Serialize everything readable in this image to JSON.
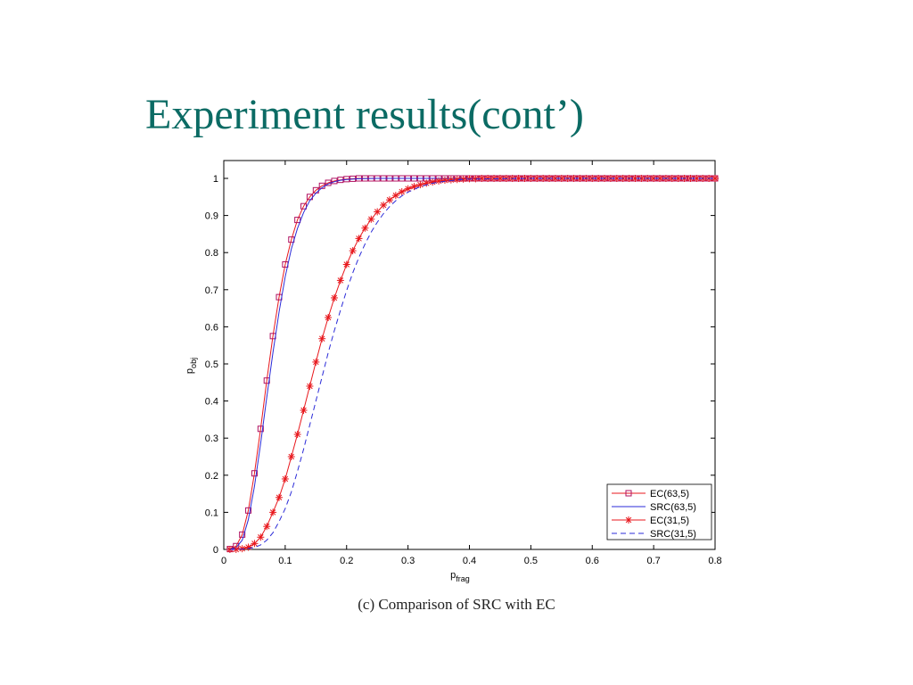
{
  "slide": {
    "title": "Experiment results(cont’)",
    "caption": "(c) Comparison of SRC with EC"
  },
  "colors": {
    "title": "#0b6b64",
    "red": "#e8171c",
    "blue": "#2b2bd8",
    "marker_square": "#b01060"
  },
  "chart_data": {
    "type": "line",
    "xlabel_main": "p",
    "xlabel_sub": "frag",
    "ylabel_main": "p",
    "ylabel_sub": "obj",
    "xlim": [
      0,
      0.8
    ],
    "ylim": [
      0,
      1
    ],
    "xticks": [
      "0",
      "0.1",
      "0.2",
      "0.3",
      "0.4",
      "0.5",
      "0.6",
      "0.7",
      "0.8"
    ],
    "yticks": [
      "0",
      "0.1",
      "0.2",
      "0.3",
      "0.4",
      "0.5",
      "0.6",
      "0.7",
      "0.8",
      "0.9",
      "1"
    ],
    "legend_position": "bottom-right",
    "series": [
      {
        "name": "EC(63,5)",
        "line": "solid",
        "marker": "square",
        "x": [
          0.01,
          0.02,
          0.03,
          0.04,
          0.05,
          0.06,
          0.07,
          0.08,
          0.09,
          0.1,
          0.11,
          0.12,
          0.13,
          0.14,
          0.15,
          0.16,
          0.17,
          0.18,
          0.19,
          0.2,
          0.21,
          0.22,
          0.23,
          0.24,
          0.25,
          0.26,
          0.27,
          0.28,
          0.29,
          0.3,
          0.31,
          0.32,
          0.33,
          0.34,
          0.35,
          0.36,
          0.37,
          0.38,
          0.39,
          0.4,
          0.41,
          0.42,
          0.43,
          0.44,
          0.45,
          0.46,
          0.47,
          0.48,
          0.49,
          0.5,
          0.51,
          0.52,
          0.53,
          0.54,
          0.55,
          0.56,
          0.57,
          0.58,
          0.59,
          0.6,
          0.61,
          0.62,
          0.63,
          0.64,
          0.65,
          0.66,
          0.67,
          0.68,
          0.69,
          0.7,
          0.71,
          0.72,
          0.73,
          0.74,
          0.75,
          0.76,
          0.77,
          0.78,
          0.79,
          0.8
        ],
        "y": [
          0.001,
          0.009,
          0.04,
          0.105,
          0.205,
          0.325,
          0.455,
          0.575,
          0.68,
          0.768,
          0.835,
          0.888,
          0.925,
          0.95,
          0.968,
          0.98,
          0.988,
          0.993,
          0.996,
          0.998,
          0.999,
          1,
          1,
          1,
          1,
          1,
          1,
          1,
          1,
          1,
          1,
          1,
          1,
          1,
          1,
          1,
          1,
          1,
          1,
          1,
          1,
          1,
          1,
          1,
          1,
          1,
          1,
          1,
          1,
          1,
          1,
          1,
          1,
          1,
          1,
          1,
          1,
          1,
          1,
          1,
          1,
          1,
          1,
          1,
          1,
          1,
          1,
          1,
          1,
          1,
          1,
          1,
          1,
          1,
          1,
          1,
          1,
          1,
          1,
          1
        ]
      },
      {
        "name": "SRC(63,5)",
        "line": "solid",
        "marker": "none",
        "x": [
          0.005,
          0.02,
          0.03,
          0.04,
          0.05,
          0.06,
          0.07,
          0.08,
          0.09,
          0.1,
          0.11,
          0.12,
          0.13,
          0.14,
          0.15,
          0.16,
          0.17,
          0.18,
          0.19,
          0.2,
          0.22,
          0.25,
          0.3,
          0.4,
          0.5,
          0.6,
          0.7,
          0.8
        ],
        "y": [
          0,
          0.005,
          0.025,
          0.08,
          0.17,
          0.285,
          0.41,
          0.53,
          0.64,
          0.735,
          0.81,
          0.865,
          0.908,
          0.94,
          0.96,
          0.975,
          0.985,
          0.991,
          0.995,
          0.997,
          0.999,
          1,
          1,
          1,
          1,
          1,
          1,
          1
        ]
      },
      {
        "name": "EC(31,5)",
        "line": "solid",
        "marker": "star",
        "x": [
          0.01,
          0.02,
          0.03,
          0.04,
          0.05,
          0.06,
          0.07,
          0.08,
          0.09,
          0.1,
          0.11,
          0.12,
          0.13,
          0.14,
          0.15,
          0.16,
          0.17,
          0.18,
          0.19,
          0.2,
          0.21,
          0.22,
          0.23,
          0.24,
          0.25,
          0.26,
          0.27,
          0.28,
          0.29,
          0.3,
          0.31,
          0.32,
          0.33,
          0.34,
          0.35,
          0.36,
          0.37,
          0.38,
          0.39,
          0.4,
          0.41,
          0.42,
          0.43,
          0.44,
          0.45,
          0.46,
          0.47,
          0.48,
          0.49,
          0.5,
          0.51,
          0.52,
          0.53,
          0.54,
          0.55,
          0.56,
          0.57,
          0.58,
          0.59,
          0.6,
          0.61,
          0.62,
          0.63,
          0.64,
          0.65,
          0.66,
          0.67,
          0.68,
          0.69,
          0.7,
          0.71,
          0.72,
          0.73,
          0.74,
          0.75,
          0.76,
          0.77,
          0.78,
          0.79,
          0.8
        ],
        "y": [
          0,
          0,
          0.002,
          0.006,
          0.016,
          0.033,
          0.062,
          0.1,
          0.14,
          0.19,
          0.25,
          0.31,
          0.375,
          0.44,
          0.505,
          0.568,
          0.625,
          0.678,
          0.725,
          0.768,
          0.805,
          0.838,
          0.866,
          0.89,
          0.91,
          0.928,
          0.942,
          0.954,
          0.964,
          0.972,
          0.978,
          0.983,
          0.987,
          0.99,
          0.993,
          0.995,
          0.996,
          0.997,
          0.998,
          0.999,
          0.999,
          1,
          1,
          1,
          1,
          1,
          1,
          1,
          1,
          1,
          1,
          1,
          1,
          1,
          1,
          1,
          1,
          1,
          1,
          1,
          1,
          1,
          1,
          1,
          1,
          1,
          1,
          1,
          1,
          1,
          1,
          1,
          1,
          1,
          1,
          1,
          1,
          1,
          1,
          1
        ]
      },
      {
        "name": "SRC(31,5)",
        "line": "dashed",
        "marker": "none",
        "x": [
          0.01,
          0.03,
          0.05,
          0.06,
          0.07,
          0.08,
          0.09,
          0.1,
          0.11,
          0.12,
          0.13,
          0.14,
          0.15,
          0.16,
          0.17,
          0.18,
          0.19,
          0.2,
          0.21,
          0.22,
          0.23,
          0.24,
          0.25,
          0.26,
          0.27,
          0.28,
          0.29,
          0.3,
          0.32,
          0.34,
          0.36,
          0.38,
          0.4,
          0.45,
          0.5,
          0.6,
          0.7,
          0.8
        ],
        "y": [
          0,
          0.001,
          0.005,
          0.012,
          0.025,
          0.045,
          0.075,
          0.11,
          0.155,
          0.21,
          0.27,
          0.335,
          0.4,
          0.465,
          0.53,
          0.59,
          0.645,
          0.698,
          0.745,
          0.787,
          0.823,
          0.855,
          0.882,
          0.905,
          0.924,
          0.94,
          0.953,
          0.963,
          0.978,
          0.987,
          0.992,
          0.996,
          0.998,
          0.999,
          1,
          1,
          1,
          1
        ]
      }
    ]
  }
}
